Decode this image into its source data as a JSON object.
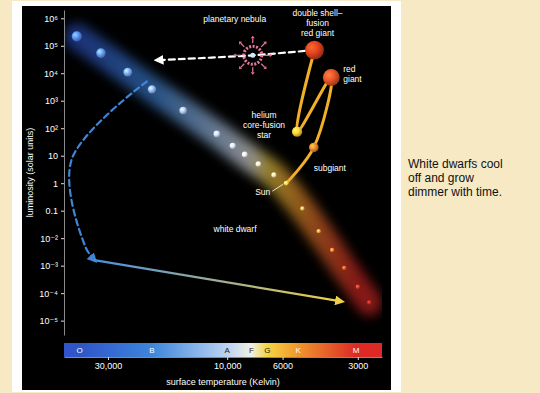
{
  "chart_data": {
    "type": "scatter",
    "log": true,
    "xlabel": "surface temperature (Kelvin)",
    "ylabel": "luminosity (solar units)",
    "xlim": [
      45000,
      2400
    ],
    "ylim": [
      3e-06,
      2000000
    ],
    "xticks": [
      {
        "value": 30000,
        "label": "30,000"
      },
      {
        "value": 10000,
        "label": "10,000"
      },
      6000,
      3000
    ],
    "yticks": [
      {
        "value": 1000000,
        "label": "10⁶"
      },
      {
        "value": 100000,
        "label": "10⁵"
      },
      {
        "value": 10000,
        "label": "10⁴"
      },
      {
        "value": 1000,
        "label": "10³"
      },
      {
        "value": 100,
        "label": "10²"
      },
      10,
      1,
      0.1,
      {
        "value": 0.01,
        "label": "10⁻²"
      },
      {
        "value": 0.001,
        "label": "10⁻³"
      },
      {
        "value": 0.0001,
        "label": "10⁻⁴"
      },
      {
        "value": 1e-05,
        "label": "10⁻⁵"
      }
    ],
    "spectral_classes": [
      {
        "label": "O",
        "x": 39000,
        "color": "#2f55c8"
      },
      {
        "label": "B",
        "x": 20000,
        "color": "#3d86dc"
      },
      {
        "label": "A",
        "x": 10000,
        "color": "#bcd3f2"
      },
      {
        "label": "F",
        "x": 8000,
        "color": "#f2efe4"
      },
      {
        "label": "G",
        "x": 6900,
        "color": "#f4d441"
      },
      {
        "label": "K",
        "x": 5200,
        "color": "#f0962d"
      },
      {
        "label": "M",
        "x": 3050,
        "color": "#dd2a26"
      }
    ],
    "series": [
      {
        "type": "scatter",
        "marker": "sphere",
        "x": [
          40000,
          32000,
          25000,
          20000,
          15000,
          11000,
          9500,
          8500,
          7500,
          6500,
          5000,
          4300,
          3800,
          3400,
          3000,
          2700
        ],
        "values": [
          220000,
          54000,
          11000,
          2600,
          440,
          62,
          23,
          11,
          5,
          2,
          0.12,
          0.018,
          0.0037,
          0.00083,
          0.00017,
          4.6e-05
        ],
        "colors": [
          "#5b8ff0",
          "#6a9cf2",
          "#80acf4",
          "#97bdf6",
          "#b4cff8",
          "#d4e2fb",
          "#e8eefc",
          "#f5f5f5",
          "#fdf6dc",
          "#fff0b0",
          "#ffc966",
          "#ffae4a",
          "#ff8c3a",
          "#f26a30",
          "#e5482b",
          "#d6322a"
        ]
      },
      {
        "type": "line",
        "color": "#f2b02a",
        "line_style": "solid",
        "marker": "sphere",
        "x": [
          5800,
          4500,
          3830,
          5250,
          4470
        ],
        "values": [
          1,
          20,
          7000,
          75,
          70000
        ],
        "colors": [
          "#ffe35a",
          "#f08a2c",
          "#e8542a",
          "#ffd23a",
          "#e2431f"
        ]
      },
      {
        "type": "line",
        "color": "#ffffff",
        "line_style": "dashed",
        "marker": "arrow",
        "x": [
          4470,
          7900,
          19000
        ],
        "values": [
          70000,
          45000,
          30000
        ]
      },
      {
        "type": "line",
        "color": "#3f86d8",
        "line_style": "dashed",
        "marker": "arrow",
        "x": [
          21000,
          42000,
          37000,
          34000
        ],
        "values": [
          5000,
          7,
          0.005,
          0.0016
        ]
      },
      {
        "type": "line",
        "line_style": "solid",
        "marker": "arrow",
        "colors": [
          "#4a8fe0",
          "#f2cf48"
        ],
        "x": [
          34000,
          3500
        ],
        "values": [
          0.0016,
          5e-05
        ]
      },
      {
        "type": "scatter",
        "marker": "nebula",
        "color": "#e7789f",
        "x": [
          7900
        ],
        "values": [
          45000
        ]
      }
    ],
    "annotations": [
      {
        "text": [
          "planetary nebula"
        ],
        "x": 7900,
        "y": 45000
      },
      {
        "text": [
          "double shell–",
          "fusion",
          "red giant"
        ],
        "x": 4470,
        "y": 70000
      },
      {
        "text": [
          "red",
          "giant"
        ],
        "x": 3830,
        "y": 7000
      },
      {
        "text": [
          "helium",
          "core-fusion",
          "star"
        ],
        "x": 5250,
        "y": 75
      },
      {
        "text": [
          "subgiant"
        ],
        "x": 4500,
        "y": 20
      },
      {
        "text": [
          "Sun"
        ],
        "x": 5800,
        "y": 1
      },
      {
        "text": [
          "white dwarf"
        ],
        "x": 9300,
        "y": 0.017
      }
    ]
  },
  "caption": [
    "White dwarfs cool",
    "off and grow",
    "dimmer with time."
  ]
}
